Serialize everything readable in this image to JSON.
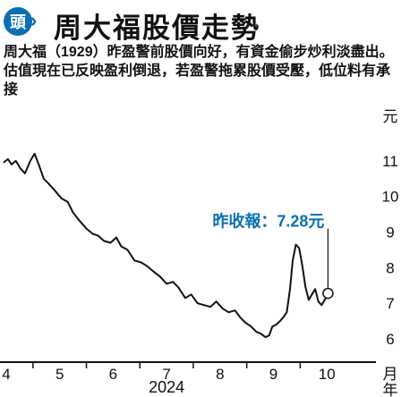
{
  "header": {
    "badge": "頭",
    "title": "周大福股價走勢"
  },
  "description": "周大福（1929）昨盈警前股價向好，有資金偷步炒利淡盡出。估值現在已反映盈利倒退，若盈警拖累股價受壓，低位料有承接",
  "chart_data": {
    "type": "line",
    "title": "周大福股價走勢",
    "x_unit": "月",
    "year_label": "2024",
    "y_unit": "元",
    "x_tick_labels": [
      "4",
      "5",
      "6",
      "7",
      "8",
      "9",
      "10"
    ],
    "y_tick_labels": [
      "6",
      "7",
      "8",
      "9",
      "10",
      "11"
    ],
    "ylim": [
      5.6,
      11.5
    ],
    "xlim": [
      3.95,
      10.75
    ],
    "series": [
      {
        "name": "",
        "points": [
          [
            3.95,
            10.95
          ],
          [
            4.03,
            11.05
          ],
          [
            4.1,
            10.9
          ],
          [
            4.18,
            11.0
          ],
          [
            4.26,
            10.8
          ],
          [
            4.35,
            10.65
          ],
          [
            4.45,
            11.0
          ],
          [
            4.53,
            11.2
          ],
          [
            4.62,
            10.85
          ],
          [
            4.7,
            10.5
          ],
          [
            4.8,
            10.35
          ],
          [
            4.92,
            10.15
          ],
          [
            5.03,
            9.95
          ],
          [
            5.15,
            9.85
          ],
          [
            5.25,
            9.55
          ],
          [
            5.38,
            9.3
          ],
          [
            5.5,
            9.1
          ],
          [
            5.62,
            8.95
          ],
          [
            5.72,
            8.9
          ],
          [
            5.83,
            8.75
          ],
          [
            5.95,
            8.7
          ],
          [
            6.06,
            8.85
          ],
          [
            6.15,
            8.6
          ],
          [
            6.27,
            8.5
          ],
          [
            6.4,
            8.2
          ],
          [
            6.52,
            8.15
          ],
          [
            6.63,
            8.05
          ],
          [
            6.75,
            7.9
          ],
          [
            6.88,
            7.75
          ],
          [
            7.0,
            7.55
          ],
          [
            7.12,
            7.6
          ],
          [
            7.22,
            7.45
          ],
          [
            7.35,
            7.15
          ],
          [
            7.46,
            7.25
          ],
          [
            7.58,
            7.0
          ],
          [
            7.7,
            6.95
          ],
          [
            7.82,
            6.9
          ],
          [
            7.93,
            7.05
          ],
          [
            8.05,
            6.85
          ],
          [
            8.16,
            6.75
          ],
          [
            8.28,
            6.8
          ],
          [
            8.38,
            6.6
          ],
          [
            8.48,
            6.45
          ],
          [
            8.58,
            6.35
          ],
          [
            8.68,
            6.2
          ],
          [
            8.76,
            6.15
          ],
          [
            8.85,
            6.05
          ],
          [
            8.92,
            6.1
          ],
          [
            8.98,
            6.35
          ],
          [
            9.05,
            6.4
          ],
          [
            9.12,
            6.5
          ],
          [
            9.18,
            6.6
          ],
          [
            9.25,
            6.75
          ],
          [
            9.31,
            7.4
          ],
          [
            9.36,
            8.2
          ],
          [
            9.42,
            8.65
          ],
          [
            9.48,
            8.55
          ],
          [
            9.54,
            8.05
          ],
          [
            9.6,
            7.45
          ],
          [
            9.66,
            7.1
          ],
          [
            9.72,
            7.25
          ],
          [
            9.78,
            7.4
          ],
          [
            9.84,
            7.05
          ],
          [
            9.9,
            6.95
          ],
          [
            9.96,
            7.1
          ],
          [
            10.02,
            7.28
          ]
        ]
      }
    ],
    "annotation": {
      "label": "昨收報：7.28元",
      "x": 10.02,
      "y": 7.28
    },
    "grid": false,
    "colors": {
      "line": "#111111",
      "accent": "#0b6fb3",
      "marker": "#111111"
    }
  }
}
